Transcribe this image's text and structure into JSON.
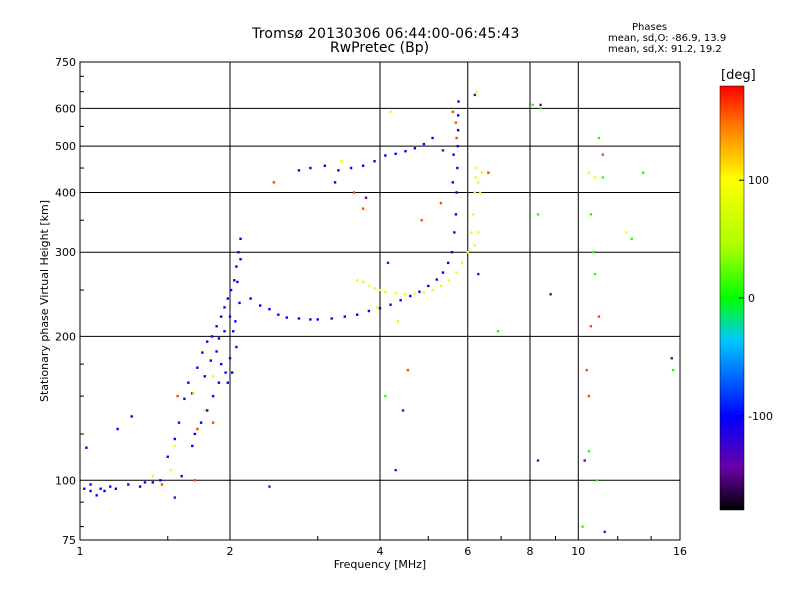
{
  "chart_data": {
    "type": "scatter",
    "title": "Tromsø 20130306 06:44:00-06:45:43",
    "subtitle": "RwPretec (Bp)",
    "xlabel": "Frequency [MHz]",
    "ylabel": "Stationary phase Virtual Height [km]",
    "x_scale": "log",
    "y_scale": "log",
    "xlim": [
      1,
      16
    ],
    "ylim": [
      75,
      750
    ],
    "x_ticks": [
      1,
      2,
      4,
      6,
      8,
      10,
      16
    ],
    "x_tick_labels": [
      "1",
      "2",
      "4",
      "6",
      "8",
      "10",
      "16"
    ],
    "y_ticks": [
      75,
      100,
      200,
      300,
      400,
      500,
      600,
      750
    ],
    "y_tick_labels": [
      "75",
      "100",
      "200",
      "300",
      "400",
      "500",
      "600",
      "750"
    ],
    "grid": true,
    "phases": {
      "title": "Phases",
      "o_line": "mean, sd,O: -86.9, 13.9",
      "x_line": "mean, sd,X:  91.2, 19.2"
    },
    "colorbar": {
      "label": "[deg]",
      "range": [
        -180,
        180
      ],
      "ticks": [
        100,
        0,
        -100
      ],
      "tick_labels": [
        "100",
        "0",
        "-100"
      ]
    },
    "series": [
      {
        "phase_deg": -100,
        "points": [
          [
            1.02,
            96
          ],
          [
            1.05,
            95
          ],
          [
            1.08,
            93
          ],
          [
            1.12,
            95
          ],
          [
            1.18,
            96
          ],
          [
            1.25,
            98
          ],
          [
            1.32,
            97
          ],
          [
            1.4,
            99
          ],
          [
            1.03,
            117
          ],
          [
            1.19,
            128
          ],
          [
            1.27,
            136
          ],
          [
            1.5,
            112
          ],
          [
            1.55,
            122
          ],
          [
            1.58,
            132
          ],
          [
            1.62,
            148
          ],
          [
            1.65,
            160
          ],
          [
            1.68,
            152
          ],
          [
            1.72,
            172
          ],
          [
            1.76,
            185
          ],
          [
            1.8,
            195
          ],
          [
            1.84,
            200
          ],
          [
            1.88,
            210
          ],
          [
            1.92,
            220
          ],
          [
            1.95,
            230
          ],
          [
            1.98,
            240
          ],
          [
            2.01,
            250
          ],
          [
            2.04,
            262
          ],
          [
            2.06,
            280
          ],
          [
            2.08,
            300
          ],
          [
            2.1,
            320
          ],
          [
            2.03,
            205
          ],
          [
            2.06,
            190
          ],
          [
            1.92,
            175
          ],
          [
            1.96,
            168
          ],
          [
            2.0,
            180
          ],
          [
            2.05,
            215
          ],
          [
            2.09,
            235
          ],
          [
            1.9,
            160
          ],
          [
            1.85,
            150
          ],
          [
            1.8,
            140
          ],
          [
            1.75,
            132
          ],
          [
            1.7,
            125
          ],
          [
            1.68,
            118
          ],
          [
            2.2,
            240
          ],
          [
            2.3,
            232
          ],
          [
            2.4,
            228
          ],
          [
            2.5,
            222
          ],
          [
            2.6,
            219
          ],
          [
            2.75,
            218
          ],
          [
            2.9,
            217
          ],
          [
            3.0,
            217
          ],
          [
            3.2,
            218
          ],
          [
            3.4,
            220
          ],
          [
            3.6,
            222
          ],
          [
            3.8,
            226
          ],
          [
            4.0,
            229
          ],
          [
            4.2,
            233
          ],
          [
            4.4,
            238
          ],
          [
            4.6,
            243
          ],
          [
            4.8,
            248
          ],
          [
            5.0,
            255
          ],
          [
            5.2,
            263
          ],
          [
            5.35,
            272
          ],
          [
            5.48,
            285
          ],
          [
            5.58,
            300
          ],
          [
            5.64,
            330
          ],
          [
            5.68,
            360
          ],
          [
            5.7,
            400
          ],
          [
            5.72,
            450
          ],
          [
            5.73,
            500
          ],
          [
            5.74,
            540
          ],
          [
            5.74,
            580
          ],
          [
            5.75,
            620
          ],
          [
            5.6,
            420
          ],
          [
            5.62,
            480
          ],
          [
            2.75,
            445
          ],
          [
            2.9,
            450
          ],
          [
            3.1,
            455
          ],
          [
            3.3,
            445
          ],
          [
            3.5,
            450
          ],
          [
            3.7,
            455
          ],
          [
            3.9,
            465
          ],
          [
            4.1,
            478
          ],
          [
            4.3,
            482
          ],
          [
            4.5,
            488
          ],
          [
            4.7,
            495
          ],
          [
            4.9,
            505
          ],
          [
            5.1,
            520
          ],
          [
            3.25,
            420
          ],
          [
            1.05,
            98
          ],
          [
            1.1,
            96
          ],
          [
            1.15,
            97
          ],
          [
            1.35,
            99
          ],
          [
            1.45,
            100
          ],
          [
            1.6,
            102
          ],
          [
            1.9,
            198
          ],
          [
            1.95,
            205
          ],
          [
            2.0,
            220
          ],
          [
            1.88,
            186
          ],
          [
            2.02,
            168
          ],
          [
            1.98,
            160
          ],
          [
            1.83,
            178
          ],
          [
            1.78,
            165
          ],
          [
            2.07,
            260
          ],
          [
            2.1,
            290
          ]
        ]
      },
      {
        "phase_deg": 90,
        "points": [
          [
            3.6,
            262
          ],
          [
            3.7,
            260
          ],
          [
            3.8,
            255
          ],
          [
            3.9,
            252
          ],
          [
            4.0,
            250
          ],
          [
            4.1,
            248
          ],
          [
            4.3,
            246
          ],
          [
            4.5,
            245
          ],
          [
            4.7,
            246
          ],
          [
            4.9,
            247
          ],
          [
            5.1,
            250
          ],
          [
            5.3,
            255
          ],
          [
            5.5,
            262
          ],
          [
            5.7,
            272
          ],
          [
            5.85,
            285
          ],
          [
            6.0,
            300
          ],
          [
            6.1,
            330
          ],
          [
            6.15,
            360
          ],
          [
            6.2,
            400
          ],
          [
            6.22,
            430
          ],
          [
            6.25,
            450
          ],
          [
            6.3,
            420
          ],
          [
            6.35,
            400
          ],
          [
            6.4,
            440
          ],
          [
            6.3,
            330
          ],
          [
            6.2,
            310
          ],
          [
            4.2,
            590
          ],
          [
            6.25,
            650
          ],
          [
            1.4,
            102
          ],
          [
            1.55,
            118
          ],
          [
            1.78,
            140
          ],
          [
            1.85,
            165
          ],
          [
            10.5,
            440
          ],
          [
            10.8,
            430
          ],
          [
            12.5,
            330
          ],
          [
            3.35,
            465
          ],
          [
            3.95,
            230
          ],
          [
            4.35,
            215
          ],
          [
            1.52,
            105
          ],
          [
            1.69,
            152
          ]
        ]
      },
      {
        "phase_deg": 160,
        "points": [
          [
            5.6,
            590
          ],
          [
            5.68,
            560
          ],
          [
            5.7,
            520
          ],
          [
            6.6,
            440
          ],
          [
            10.4,
            170
          ],
          [
            10.6,
            210
          ],
          [
            10.5,
            150
          ],
          [
            11.0,
            220
          ],
          [
            3.7,
            370
          ],
          [
            4.55,
            170
          ],
          [
            4.85,
            350
          ],
          [
            5.3,
            380
          ],
          [
            3.55,
            400
          ],
          [
            2.45,
            420
          ],
          [
            1.57,
            150
          ],
          [
            1.72,
            128
          ],
          [
            1.85,
            132
          ],
          [
            1.46,
            98
          ],
          [
            1.7,
            100
          ],
          [
            11.2,
            480
          ]
        ]
      },
      {
        "phase_deg": 10,
        "points": [
          [
            8.1,
            610
          ],
          [
            8.4,
            600
          ],
          [
            11.0,
            520
          ],
          [
            11.2,
            430
          ],
          [
            10.6,
            360
          ],
          [
            10.8,
            270
          ],
          [
            10.5,
            115
          ],
          [
            10.2,
            80
          ],
          [
            8.3,
            360
          ],
          [
            13.5,
            440
          ],
          [
            12.8,
            320
          ],
          [
            4.1,
            150
          ],
          [
            6.9,
            205
          ],
          [
            15.5,
            170
          ],
          [
            10.9,
            100
          ],
          [
            10.7,
            300
          ]
        ]
      },
      {
        "phase_deg": -140,
        "points": [
          [
            4.45,
            140
          ],
          [
            4.3,
            105
          ],
          [
            4.15,
            285
          ],
          [
            8.3,
            110
          ],
          [
            8.4,
            610
          ],
          [
            8.8,
            245
          ],
          [
            10.3,
            110
          ],
          [
            11.3,
            78
          ],
          [
            6.2,
            640
          ],
          [
            5.35,
            490
          ],
          [
            6.3,
            270
          ],
          [
            2.4,
            97
          ],
          [
            3.75,
            390
          ],
          [
            1.55,
            92
          ],
          [
            15.4,
            180
          ]
        ]
      }
    ]
  }
}
